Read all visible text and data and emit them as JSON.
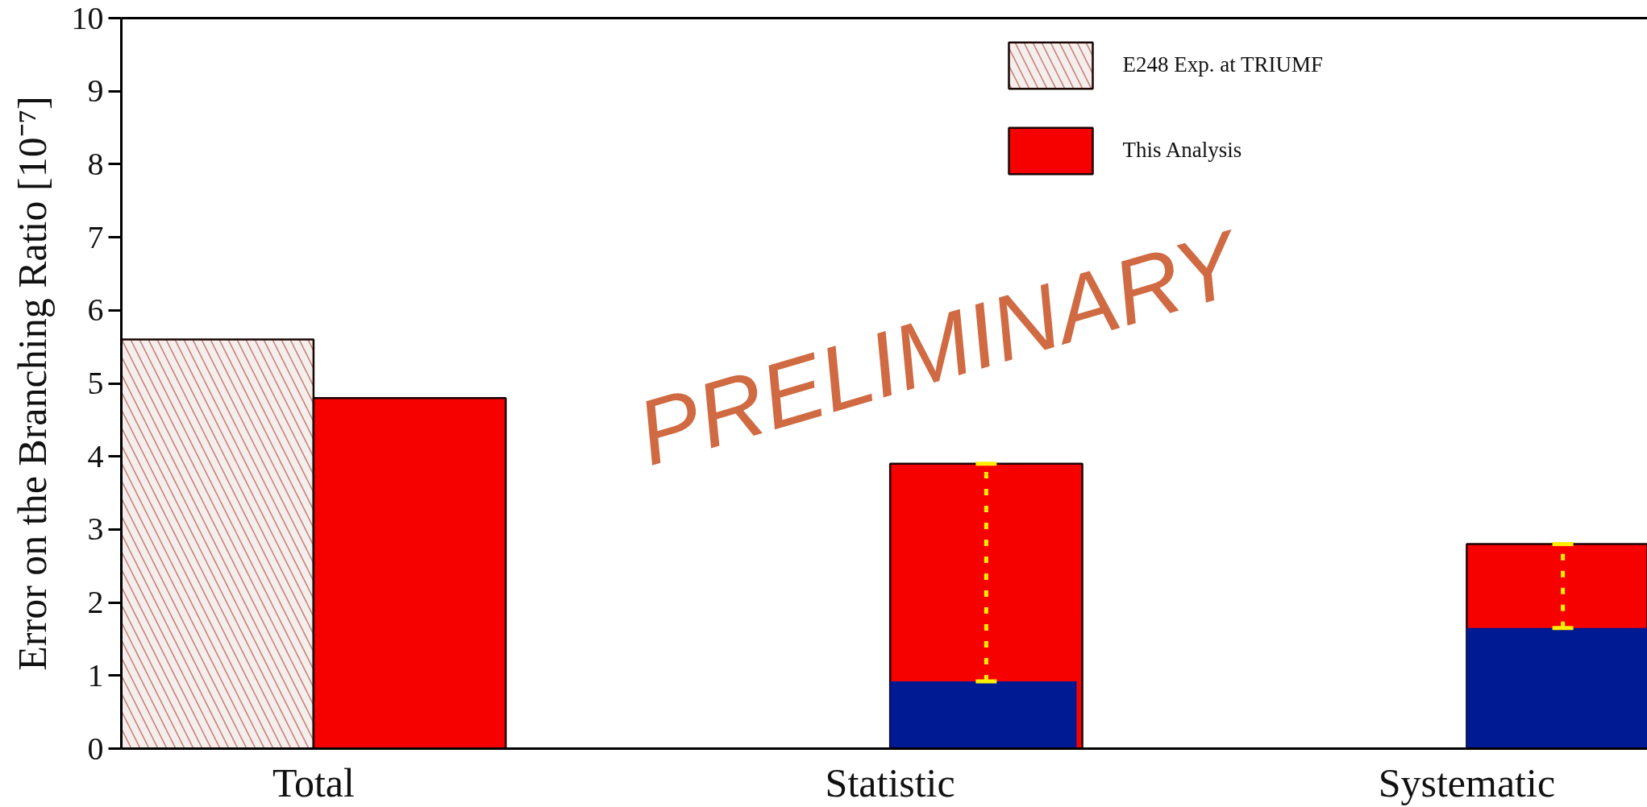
{
  "chart_data": {
    "type": "bar",
    "ylabel": "Error on the Branching Ratio [10⁻⁷]",
    "categories": [
      "Total",
      "Statistic",
      "Systematic"
    ],
    "ylim": [
      0,
      10
    ],
    "yticks": [
      0,
      1,
      2,
      3,
      4,
      5,
      6,
      7,
      8,
      9,
      10
    ],
    "legend": "top right",
    "annotations": [
      "PRELIMINARY"
    ],
    "series": [
      {
        "name": "E248 Exp. at TRIUMF",
        "color": "#c0857a",
        "values": [
          5.6,
          null,
          null
        ]
      },
      {
        "name": "This Analysis",
        "color": "#f70000",
        "values": [
          4.8,
          3.9,
          2.8
        ]
      },
      {
        "color": "#001a94",
        "values": [
          null,
          0.92,
          1.65
        ],
        "errors": [
          null,
          [
            0.92,
            3.9
          ],
          [
            1.65,
            2.8
          ]
        ]
      }
    ]
  }
}
